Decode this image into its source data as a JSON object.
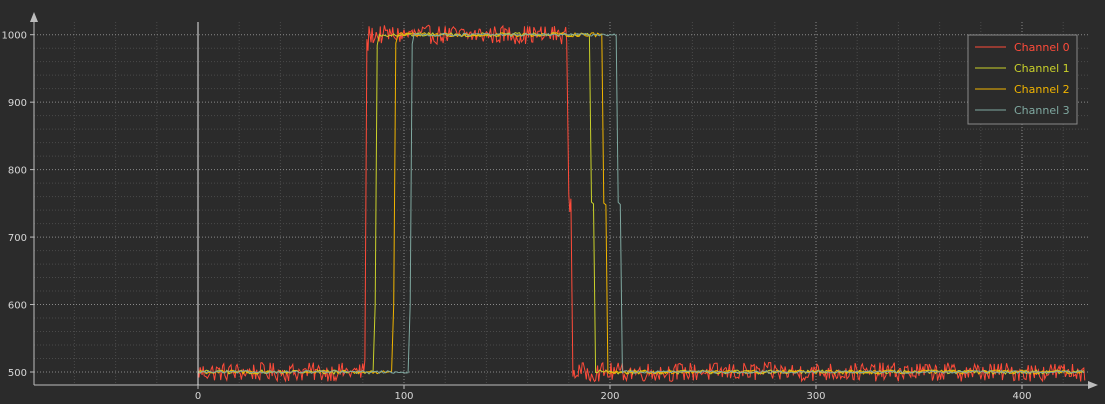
{
  "chart_data": {
    "type": "line",
    "title": "",
    "xlabel": "",
    "ylabel": "",
    "xlim": [
      -80,
      430
    ],
    "ylim": [
      485,
      1015
    ],
    "grid": true,
    "legend_position": "top-right",
    "x_ticks": [
      0,
      100,
      200,
      300,
      400
    ],
    "x_tick_labels": [
      "0",
      "100",
      "200",
      "300",
      "400"
    ],
    "y_ticks": [
      500,
      600,
      700,
      800,
      900,
      1000
    ],
    "y_tick_labels": [
      "500",
      "600",
      "700",
      "800",
      "900",
      "1000"
    ],
    "x_start": 0,
    "x_end": 430,
    "low_level": 500,
    "high_level": 1000,
    "series": [
      {
        "name": "Channel 0",
        "color": "#ff4b3a",
        "rise": 82,
        "fall": 180,
        "noise": 14
      },
      {
        "name": "Channel 1",
        "color": "#c9d12a",
        "rise": 87,
        "fall": 191,
        "noise": 3
      },
      {
        "name": "Channel 2",
        "color": "#f0b400",
        "rise": 96,
        "fall": 197,
        "noise": 3
      },
      {
        "name": "Channel 3",
        "color": "#7fa8a0",
        "rise": 104,
        "fall": 204,
        "noise": 2
      }
    ]
  }
}
